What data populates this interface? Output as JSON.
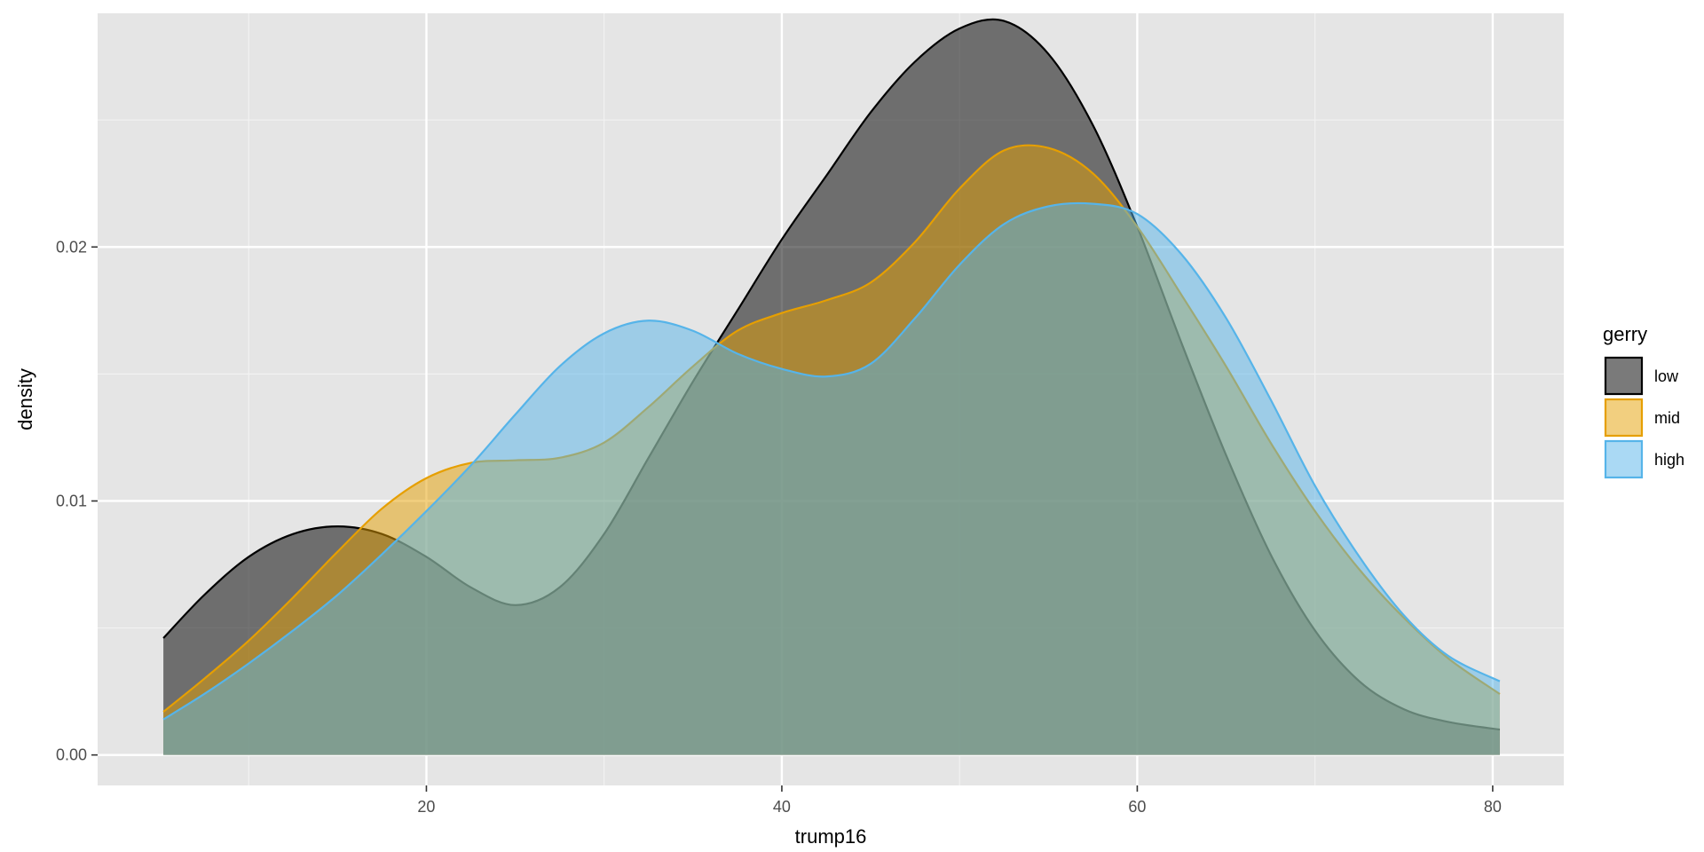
{
  "chart_data": {
    "type": "area",
    "subtype": "density",
    "title": "",
    "xlabel": "trump16",
    "ylabel": "density",
    "xlim": [
      1.5,
      84
    ],
    "ylim": [
      -0.0012,
      0.0292
    ],
    "x_ticks": [
      20,
      40,
      60,
      80
    ],
    "x_tick_labels": [
      "20",
      "40",
      "60",
      "80"
    ],
    "y_ticks": [
      0.0,
      0.01,
      0.02
    ],
    "y_tick_labels": [
      "0.00",
      "0.01",
      "0.02"
    ],
    "grid": true,
    "legend": {
      "title": "gerry",
      "position": "right"
    },
    "x": [
      5.2,
      7.5,
      10,
      12.5,
      15,
      17.5,
      20,
      22.5,
      25,
      27.5,
      30,
      32.5,
      35,
      37.5,
      40,
      42.5,
      45,
      47.5,
      50,
      52.5,
      55,
      57.5,
      60,
      62.5,
      65,
      67.5,
      70,
      72.5,
      75,
      77.5,
      80.4
    ],
    "series": [
      {
        "name": "low",
        "line_color": "#000000",
        "fill_color": "#000000",
        "fill_opacity": 0.52,
        "values": [
          0.0046,
          0.0063,
          0.0078,
          0.0087,
          0.009,
          0.0087,
          0.0078,
          0.0066,
          0.0059,
          0.0066,
          0.0087,
          0.0117,
          0.0147,
          0.0175,
          0.0203,
          0.0228,
          0.0253,
          0.0273,
          0.0286,
          0.0289,
          0.0276,
          0.0248,
          0.0208,
          0.0162,
          0.0118,
          0.0079,
          0.0049,
          0.0029,
          0.0018,
          0.0013,
          0.001
        ]
      },
      {
        "name": "mid",
        "line_color": "#E69F00",
        "fill_color": "#E69F00",
        "fill_opacity": 0.5,
        "values": [
          0.0017,
          0.003,
          0.0045,
          0.0062,
          0.008,
          0.0097,
          0.0109,
          0.0115,
          0.0116,
          0.0117,
          0.0123,
          0.0137,
          0.0153,
          0.0167,
          0.0174,
          0.0179,
          0.0186,
          0.0202,
          0.0223,
          0.0238,
          0.0239,
          0.0229,
          0.0208,
          0.0181,
          0.0153,
          0.0123,
          0.0096,
          0.0073,
          0.0054,
          0.0038,
          0.0024
        ]
      },
      {
        "name": "high",
        "line_color": "#56B4E9",
        "fill_color": "#56B4E9",
        "fill_opacity": 0.5,
        "values": [
          0.0014,
          0.0024,
          0.0036,
          0.0049,
          0.0063,
          0.0079,
          0.0096,
          0.0114,
          0.0134,
          0.0153,
          0.0166,
          0.0171,
          0.0167,
          0.0158,
          0.0152,
          0.0149,
          0.0154,
          0.0172,
          0.0193,
          0.0209,
          0.0216,
          0.0217,
          0.0213,
          0.0197,
          0.0172,
          0.014,
          0.0106,
          0.0078,
          0.0055,
          0.0039,
          0.0029
        ]
      }
    ]
  }
}
